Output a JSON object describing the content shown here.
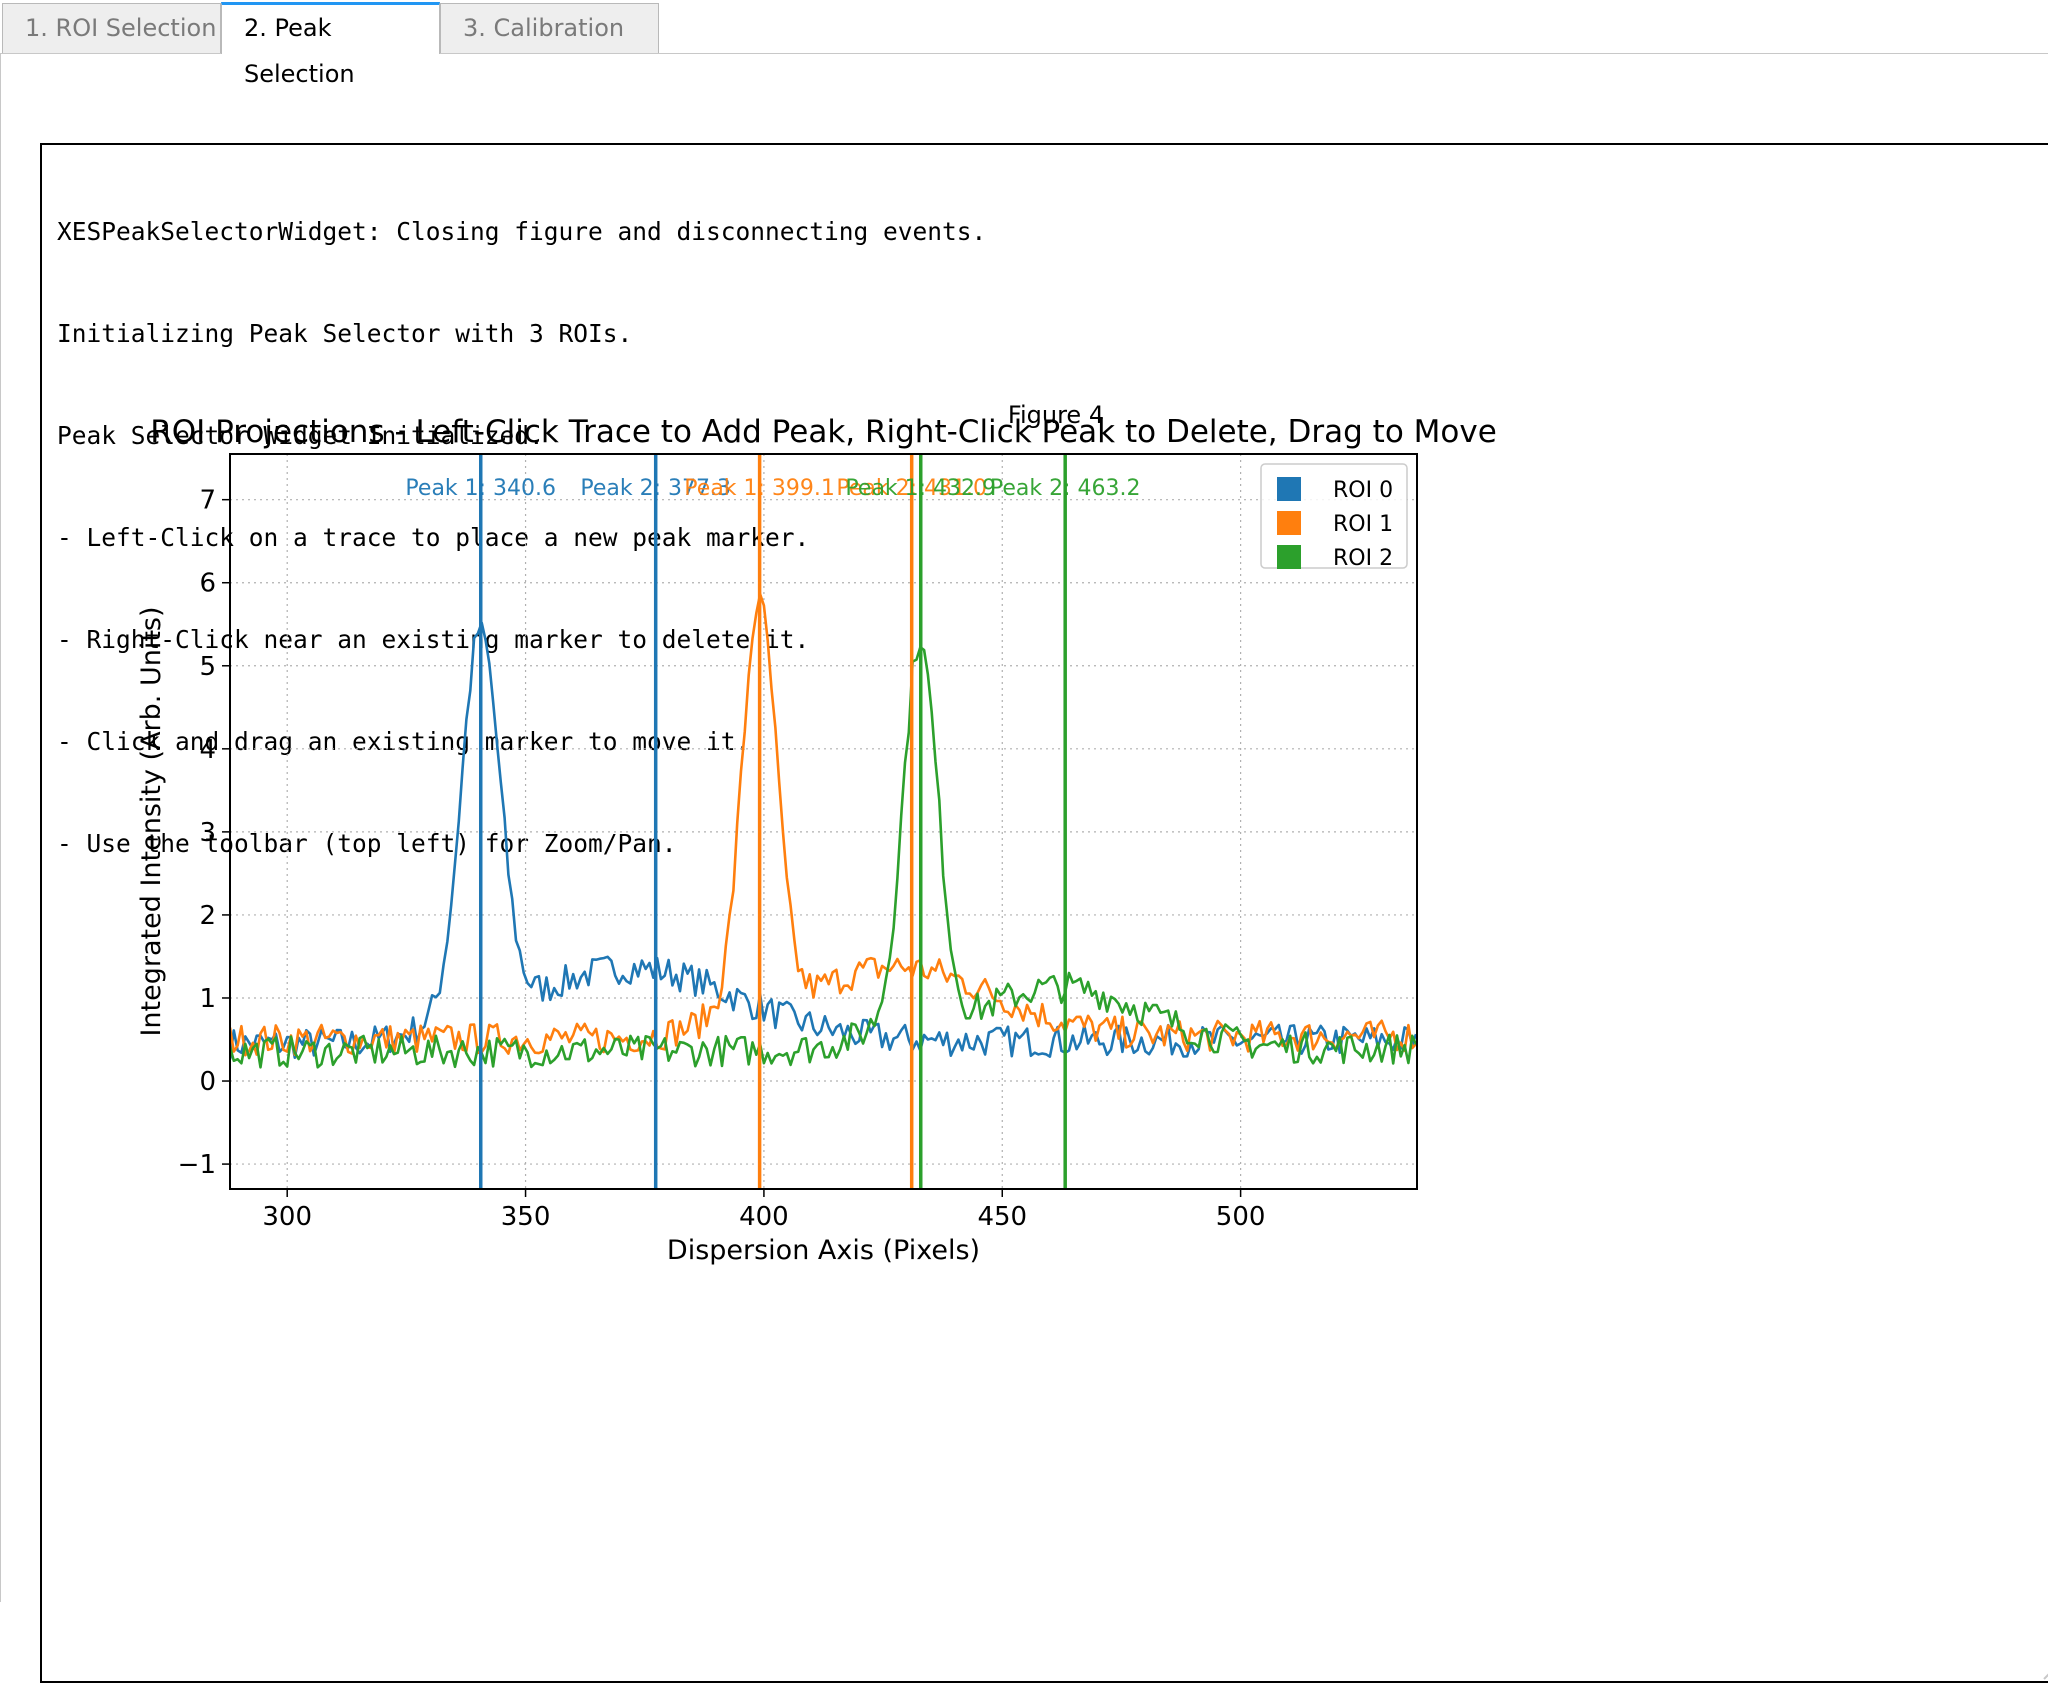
{
  "tabs": [
    {
      "label": "1. ROI Selection",
      "active": false
    },
    {
      "label": "2. Peak Selection",
      "active": true
    },
    {
      "label": "3. Calibration",
      "active": false
    }
  ],
  "log": {
    "lines": [
      "XESPeakSelectorWidget: Closing figure and disconnecting events.",
      "Initializing Peak Selector with 3 ROIs.",
      "Peak Selector Widget Initialized.",
      "- Left-Click on a trace to place a new peak marker.",
      "- Right-Click near an existing marker to delete it.",
      "- Click and drag an existing marker to move it.",
      "- Use the toolbar (top left) for Zoom/Pan."
    ]
  },
  "figure": {
    "label": "Figure 4"
  },
  "colors": {
    "roi0": "#1f77b4",
    "roi1": "#ff7f0e",
    "roi2": "#2ca02c",
    "active_tab_accent": "#2196f3"
  },
  "chart_data": {
    "type": "line",
    "title": "ROI Projections - Left-Click Trace to Add Peak, Right-Click Peak to Delete, Drag to Move",
    "xlabel": "Dispersion Axis (Pixels)",
    "ylabel": "Integrated Intensity (Arb. Units)",
    "xlim": [
      288,
      537
    ],
    "ylim": [
      -1.3,
      7.55
    ],
    "xticks": [
      300,
      350,
      400,
      450,
      500
    ],
    "yticks": [
      -1,
      0,
      1,
      2,
      3,
      4,
      5,
      6,
      7
    ],
    "grid": true,
    "legend_position": "top-right",
    "series": [
      {
        "name": "ROI 0",
        "color": "#1f77b4",
        "center": 340.6,
        "amplitude": 4.6,
        "width": 4.0,
        "baseline": 0.45,
        "tail": 0.9,
        "tail_center": 372,
        "tail_width": 22
      },
      {
        "name": "ROI 1",
        "color": "#ff7f0e",
        "center": 399.1,
        "amplitude": 4.9,
        "width": 3.6,
        "baseline": 0.5,
        "tail": 0.85,
        "tail_center": 428,
        "tail_width": 20
      },
      {
        "name": "ROI 2",
        "color": "#2ca02c",
        "center": 432.9,
        "amplitude": 4.6,
        "width": 3.6,
        "baseline": 0.35,
        "tail": 0.75,
        "tail_center": 462,
        "tail_width": 18
      }
    ],
    "peak_markers": [
      {
        "series": "ROI 0",
        "x": 340.6,
        "label": "Peak 1: 340.6",
        "color": "#1f77b4"
      },
      {
        "series": "ROI 0",
        "x": 377.3,
        "label": "Peak 2: 377.3",
        "color": "#1f77b4"
      },
      {
        "series": "ROI 1",
        "x": 399.1,
        "label": "Peak 1: 399.1",
        "color": "#ff7f0e"
      },
      {
        "series": "ROI 1",
        "x": 431.0,
        "label": "Peak 2: 431.0",
        "color": "#ff7f0e"
      },
      {
        "series": "ROI 2",
        "x": 432.9,
        "label": "Peak 1: 432.9",
        "color": "#2ca02c"
      },
      {
        "series": "ROI 2",
        "x": 463.2,
        "label": "Peak 2: 463.2",
        "color": "#2ca02c"
      }
    ]
  }
}
